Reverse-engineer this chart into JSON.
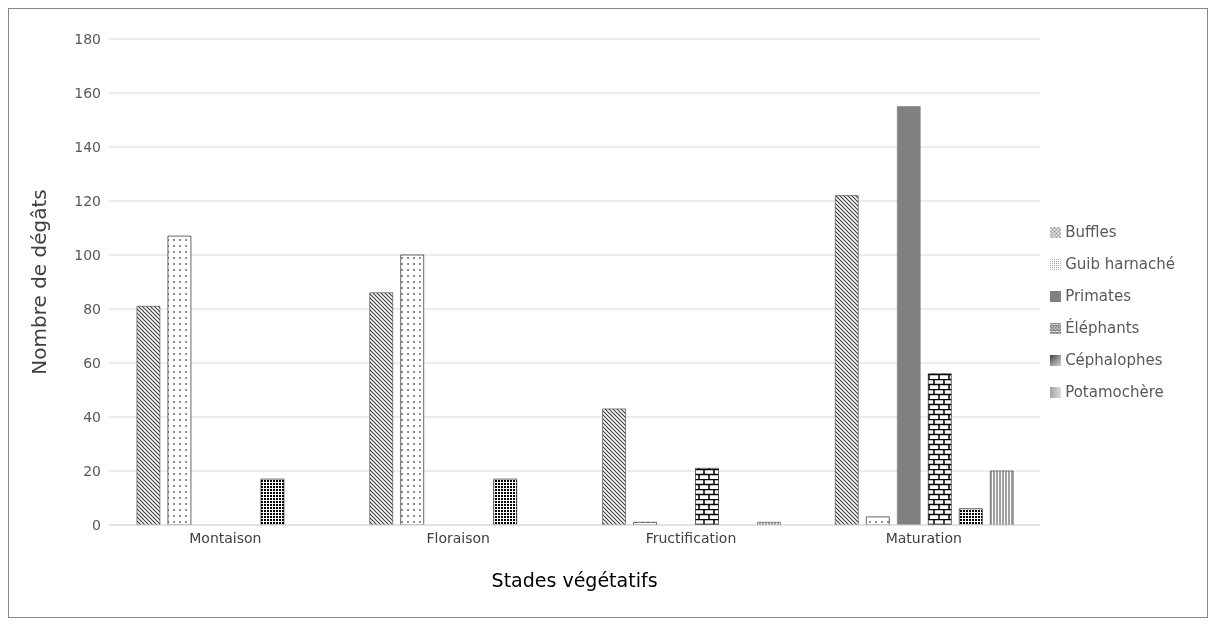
{
  "chart_data": {
    "type": "bar",
    "xlabel": "Stades végétatifs",
    "ylabel": "Nombre de dégâts",
    "categories": [
      "Montaison",
      "Floraison",
      "Fructification",
      "Maturation"
    ],
    "series": [
      {
        "name": "Buffles",
        "color": "#404040",
        "values": [
          81,
          86,
          43,
          122
        ]
      },
      {
        "name": "Guib harnaché",
        "color": "#000000",
        "values": [
          107,
          100,
          1,
          3
        ]
      },
      {
        "name": "Primates",
        "color": "#808080",
        "values": [
          0,
          0,
          0,
          155
        ]
      },
      {
        "name": "Éléphants",
        "color": "#000000",
        "values": [
          0,
          0,
          21,
          56
        ]
      },
      {
        "name": "Céphalophes",
        "color": "#000000",
        "values": [
          17,
          17,
          0,
          6
        ]
      },
      {
        "name": "Potamochère",
        "color": "#404040",
        "values": [
          0,
          0,
          1,
          20
        ]
      }
    ],
    "ylim": [
      0,
      180
    ],
    "yticks": [
      0,
      20,
      40,
      60,
      80,
      100,
      120,
      140,
      160,
      180
    ],
    "grid": "y",
    "legend": "right"
  }
}
